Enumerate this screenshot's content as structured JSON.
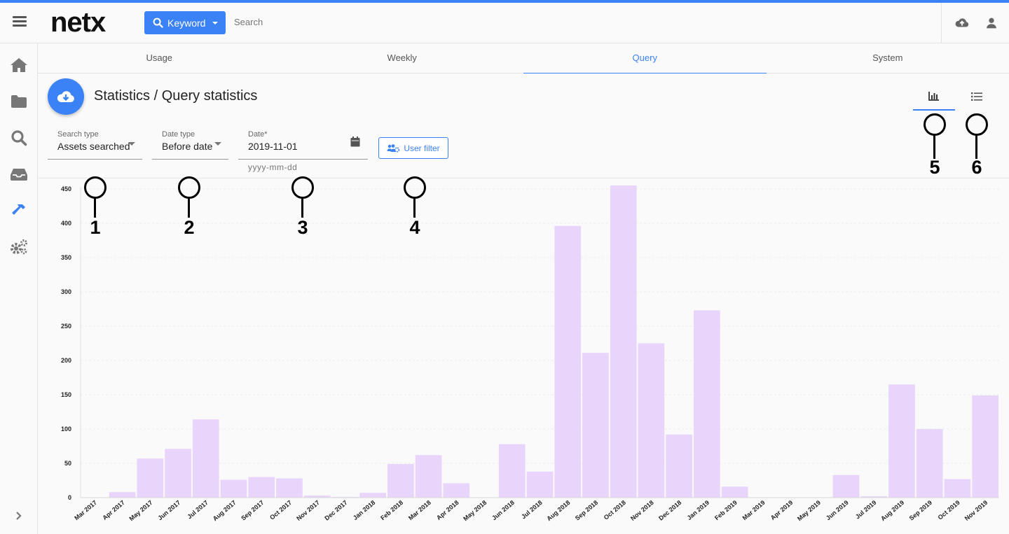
{
  "header": {
    "logo": "netx",
    "keyword_label": "Keyword",
    "search_placeholder": "Search"
  },
  "tabs": [
    {
      "label": "Usage"
    },
    {
      "label": "Weekly"
    },
    {
      "label": "Query",
      "active": true
    },
    {
      "label": "System"
    }
  ],
  "page": {
    "title": "Statistics / Query statistics"
  },
  "filters": {
    "search_type": {
      "label": "Search type",
      "value": "Assets searched"
    },
    "date_type": {
      "label": "Date type",
      "value": "Before date"
    },
    "date": {
      "label": "Date*",
      "value": "2019-11-01",
      "hint": "yyyy-mm-dd"
    },
    "user_filter_label": "User filter"
  },
  "callouts": [
    "1",
    "2",
    "3",
    "4",
    "5",
    "6"
  ],
  "colors": {
    "accent": "#3b82f6",
    "bar": "#e9d5fb"
  },
  "icons": {
    "menu": "hamburger-icon",
    "upload": "cloud-upload-icon",
    "user": "user-icon",
    "home": "home-icon",
    "folder": "folder-icon",
    "search": "search-icon",
    "inbox": "inbox-icon",
    "tools": "hammer-icon",
    "settings": "gears-icon",
    "expand": "chevron-right-icon",
    "chart_view": "bar-chart-icon",
    "list_view": "list-icon"
  },
  "chart_data": {
    "type": "bar",
    "categories": [
      "Mar 2017",
      "Apr 2017",
      "May 2017",
      "Jun 2017",
      "Jul 2017",
      "Aug 2017",
      "Sep 2017",
      "Oct 2017",
      "Nov 2017",
      "Dec 2017",
      "Jan 2018",
      "Feb 2018",
      "Mar 2018",
      "Apr 2018",
      "May 2018",
      "Jun 2018",
      "Jul 2018",
      "Aug 2018",
      "Sep 2018",
      "Oct 2018",
      "Nov 2018",
      "Dec 2018",
      "Jan 2019",
      "Feb 2019",
      "Mar 2019",
      "Apr 2019",
      "May 2019",
      "Jun 2019",
      "Jul 2019",
      "Aug 2019",
      "Sep 2019",
      "Oct 2019",
      "Nov 2019"
    ],
    "values": [
      0,
      8,
      57,
      71,
      114,
      26,
      30,
      28,
      3,
      1,
      7,
      49,
      62,
      21,
      0,
      78,
      38,
      396,
      211,
      455,
      225,
      92,
      273,
      16,
      0,
      0,
      0,
      33,
      2,
      165,
      100,
      27,
      149
    ],
    "y_ticks": [
      0,
      50,
      100,
      150,
      200,
      250,
      300,
      350,
      400,
      450
    ],
    "ylim": [
      0,
      460
    ],
    "grid": true,
    "legend": "none"
  }
}
